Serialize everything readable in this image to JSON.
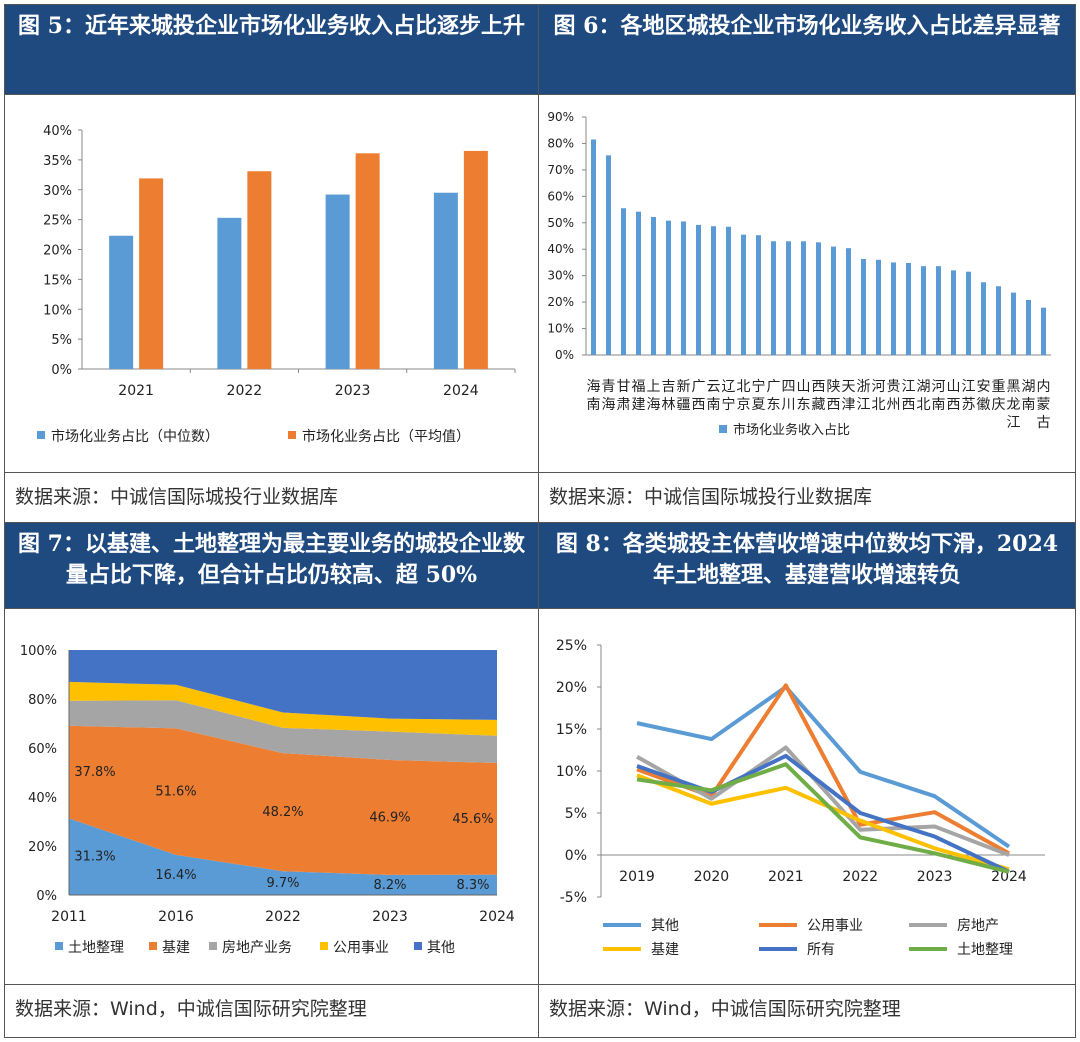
{
  "panels": [
    {
      "title": "图 5：近年来城投企业市场化业务收入占比逐步上升",
      "source": "数据来源：中诚信国际城投行业数据库"
    },
    {
      "title": "图 6：各地区城投企业市场化业务收入占比差异显著",
      "source": "数据来源：中诚信国际城投行业数据库"
    },
    {
      "title": "图 7：以基建、土地整理为最主要业务的城投企业数量占比下降，但合计占比仍较高、超 50%",
      "source": "数据来源：Wind，中诚信国际研究院整理"
    },
    {
      "title": "图 8：各类城投主体营收增速中位数均下滑，2024 年土地整理、基建营收增速转负",
      "source": "数据来源：Wind，中诚信国际研究院整理"
    }
  ],
  "chart_data": [
    {
      "type": "bar",
      "categories": [
        "2021",
        "2022",
        "2023",
        "2024"
      ],
      "series": [
        {
          "name": "市场化业务占比（中位数）",
          "color": "#5b9bd5",
          "values": [
            22.3,
            25.3,
            29.2,
            29.5
          ]
        },
        {
          "name": "市场化业务占比（平均值）",
          "color": "#ed7d31",
          "values": [
            31.9,
            33.1,
            36.1,
            36.5
          ]
        }
      ],
      "yticks": [
        "0%",
        "5%",
        "10%",
        "15%",
        "20%",
        "25%",
        "30%",
        "35%",
        "40%"
      ],
      "ylim": [
        0,
        40
      ]
    },
    {
      "type": "bar",
      "categories": [
        "海南",
        "青海",
        "甘肃",
        "福建",
        "上海",
        "吉林",
        "新疆",
        "广西",
        "云南",
        "辽宁",
        "北京",
        "宁夏",
        "广东",
        "四川",
        "山东",
        "西藏",
        "陕西",
        "天津",
        "浙江",
        "河北",
        "贵州",
        "江西",
        "湖北",
        "河南",
        "山西",
        "江苏",
        "安徽",
        "重庆",
        "黑龙江",
        "湖南",
        "内蒙古"
      ],
      "series": [
        {
          "name": "市场化业务收入占比",
          "color": "#5b9bd5",
          "values": [
            81.5,
            75.5,
            55.5,
            54.2,
            52.2,
            50.8,
            50.5,
            49.2,
            48.7,
            48.5,
            45.5,
            45.3,
            43,
            43,
            43,
            42.6,
            41,
            40.4,
            36.3,
            36,
            35,
            34.8,
            33.6,
            33.6,
            32,
            31.5,
            27.5,
            26,
            23.6,
            20.8,
            17.9
          ]
        }
      ],
      "yticks": [
        "0%",
        "10%",
        "20%",
        "30%",
        "40%",
        "50%",
        "60%",
        "70%",
        "80%",
        "90%"
      ],
      "ylim": [
        0,
        90
      ]
    },
    {
      "type": "area",
      "x": [
        "2011",
        "2016",
        "2022",
        "2023",
        "2024"
      ],
      "series": [
        {
          "name": "土地整理",
          "color": "#5b9bd5",
          "values": [
            31.3,
            16.4,
            9.7,
            8.2,
            8.3
          ]
        },
        {
          "name": "基建",
          "color": "#ed7d31",
          "values": [
            37.8,
            51.6,
            48.2,
            46.9,
            45.6
          ]
        },
        {
          "name": "房地产业务",
          "color": "#a5a5a5",
          "values": [
            10.2,
            11.5,
            10.3,
            11.6,
            11.1
          ]
        },
        {
          "name": "公用事业",
          "color": "#ffc000",
          "values": [
            7.7,
            6.3,
            6.3,
            5.3,
            6.5
          ]
        },
        {
          "name": "其他",
          "color": "#4472c4",
          "values": [
            13.0,
            14.2,
            25.5,
            28.0,
            28.5
          ]
        }
      ],
      "data_labels": [
        "31.3%",
        "37.8%",
        "16.4%",
        "51.6%",
        "9.7%",
        "48.2%",
        "8.2%",
        "46.9%",
        "8.3%",
        "45.6%"
      ],
      "yticks": [
        "0%",
        "20%",
        "40%",
        "60%",
        "80%",
        "100%"
      ],
      "ylim": [
        0,
        100
      ]
    },
    {
      "type": "line",
      "x": [
        "2019",
        "2020",
        "2021",
        "2022",
        "2023",
        "2024"
      ],
      "series": [
        {
          "name": "其他",
          "color": "#5b9bd5",
          "values": [
            15.7,
            13.8,
            20.0,
            9.9,
            7.0,
            1.0
          ]
        },
        {
          "name": "公用事业",
          "color": "#ed7d31",
          "values": [
            10.2,
            7.0,
            20.2,
            3.6,
            5.1,
            0.2
          ]
        },
        {
          "name": "房地产",
          "color": "#a5a5a5",
          "values": [
            11.7,
            6.7,
            12.8,
            3.0,
            3.4,
            0.0
          ]
        },
        {
          "name": "基建",
          "color": "#ffc000",
          "values": [
            9.5,
            6.1,
            8.0,
            4.1,
            0.8,
            -1.7
          ]
        },
        {
          "name": "所有",
          "color": "#4472c4",
          "values": [
            10.6,
            7.5,
            11.8,
            5.0,
            2.2,
            -2.0
          ]
        },
        {
          "name": "土地整理",
          "color": "#70ad47",
          "values": [
            9.0,
            7.7,
            10.8,
            2.1,
            0.2,
            -2.0
          ]
        }
      ],
      "yticks": [
        "-5%",
        "0%",
        "5%",
        "10%",
        "15%",
        "20%",
        "25%"
      ],
      "ylim": [
        -5,
        25
      ]
    }
  ]
}
